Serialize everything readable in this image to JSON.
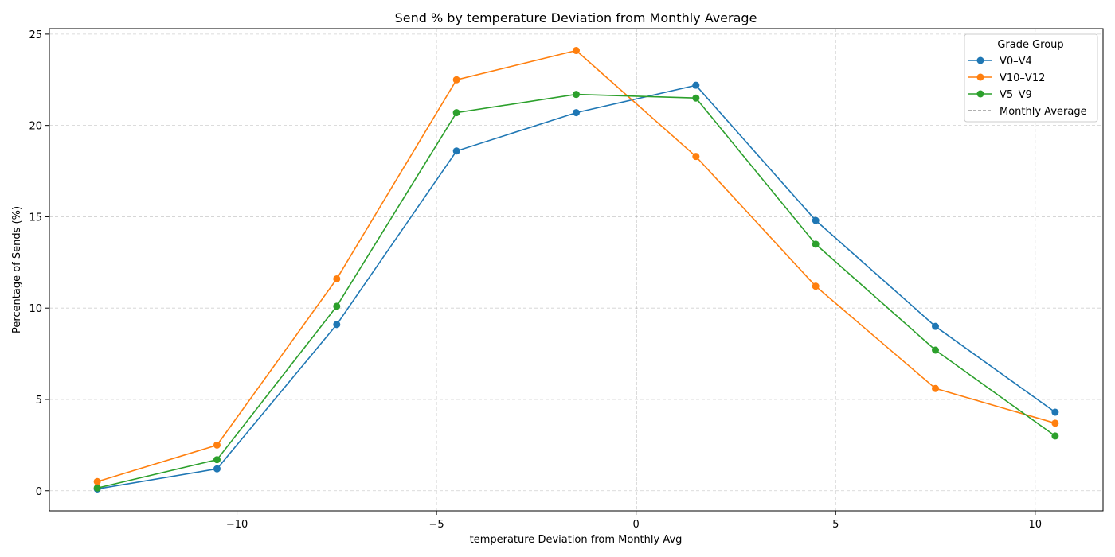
{
  "chart_data": {
    "type": "line",
    "title": "Send % by temperature Deviation from Monthly Average",
    "xlabel": "temperature Deviation from Monthly Avg",
    "ylabel": "Percentage of Sends (%)",
    "xlim": [
      -14.7,
      11.7
    ],
    "ylim": [
      -1.1,
      25.3
    ],
    "xticks": [
      -10,
      -5,
      0,
      5,
      10
    ],
    "xtick_labels": [
      "−10",
      "−5",
      "0",
      "5",
      "10"
    ],
    "yticks": [
      0,
      5,
      10,
      15,
      20,
      25
    ],
    "ytick_labels": [
      "0",
      "5",
      "10",
      "15",
      "20",
      "25"
    ],
    "grid": true,
    "legend": {
      "title": "Grade Group",
      "position": "top-right"
    },
    "x": [
      -13.5,
      -10.5,
      -7.5,
      -4.5,
      -1.5,
      1.5,
      4.5,
      7.5,
      10.5
    ],
    "series": [
      {
        "name": "V0–V4",
        "color": "#1f77b4",
        "values": [
          0.1,
          1.2,
          9.1,
          18.6,
          20.7,
          22.2,
          14.8,
          9.0,
          4.3
        ]
      },
      {
        "name": "V10–V12",
        "color": "#ff7f0e",
        "values": [
          0.5,
          2.5,
          11.6,
          22.5,
          24.1,
          18.3,
          11.2,
          5.6,
          3.7
        ]
      },
      {
        "name": "V5–V9",
        "color": "#2ca02c",
        "values": [
          0.15,
          1.7,
          10.1,
          20.7,
          21.7,
          21.5,
          13.5,
          7.7,
          3.0
        ]
      }
    ],
    "reference_line": {
      "name": "Monthly Average",
      "x": 0,
      "color": "#808080",
      "style": "dashed"
    }
  }
}
